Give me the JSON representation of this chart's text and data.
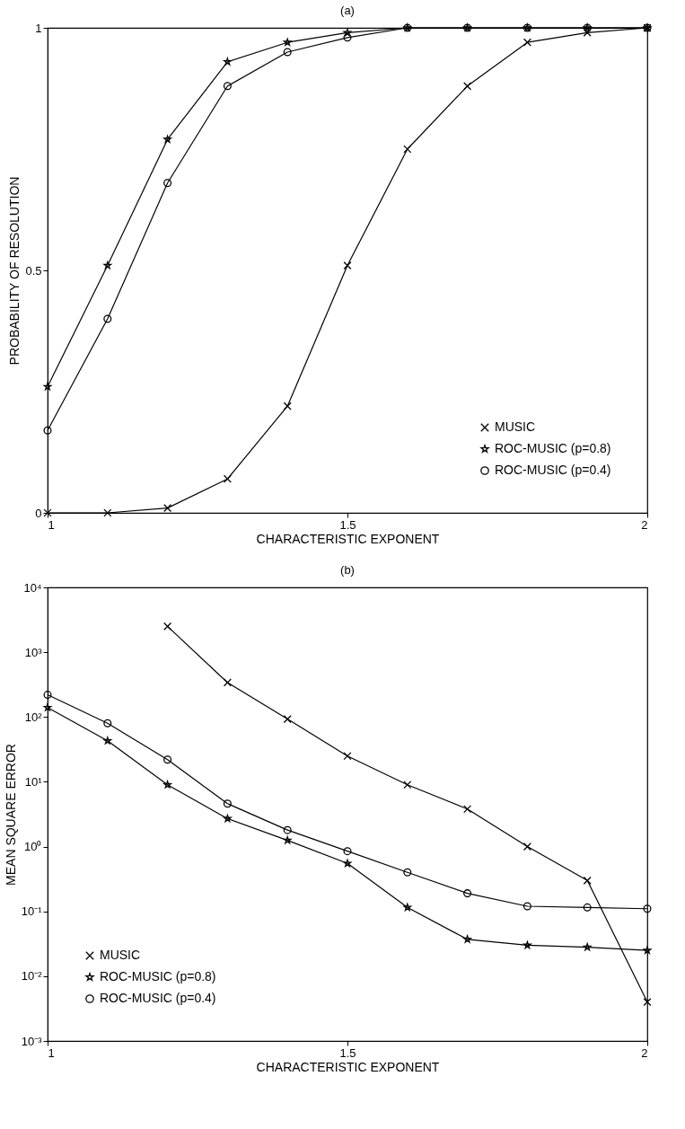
{
  "chart_data": [
    {
      "type": "line",
      "title": "(a)",
      "xlabel": "CHARACTERISTIC EXPONENT",
      "ylabel": "PROBABILITY OF RESOLUTION",
      "x": [
        1,
        1.1,
        1.2,
        1.3,
        1.4,
        1.5,
        1.6,
        1.7,
        1.8,
        1.9,
        2
      ],
      "series": [
        {
          "name": "MUSIC",
          "color": "#000000",
          "marker": "cross",
          "values": [
            0,
            0,
            0.01,
            0.07,
            0.22,
            0.51,
            0.75,
            0.88,
            0.97,
            0.99,
            1
          ]
        },
        {
          "name": "ROC-MUSIC (p=0.8)",
          "color": "#000000",
          "marker": "star",
          "values": [
            0.26,
            0.51,
            0.77,
            0.93,
            0.97,
            0.99,
            1,
            1,
            1,
            1,
            1
          ]
        },
        {
          "name": "ROC-MUSIC (p=0.4)",
          "color": "#000000",
          "marker": "circle",
          "values": [
            0.17,
            0.4,
            0.68,
            0.88,
            0.95,
            0.98,
            1,
            1,
            1,
            1,
            1
          ]
        }
      ],
      "xlim": [
        1,
        2
      ],
      "xticks": [
        1,
        1.5,
        2
      ],
      "ylim": [
        0,
        1
      ],
      "yticks": [
        0,
        0.5,
        1
      ],
      "legend": "bottom right"
    },
    {
      "type": "line",
      "title": "(b)",
      "xlabel": "CHARACTERISTIC EXPONENT",
      "ylabel": "MEAN SQUARE ERROR",
      "x": [
        1,
        1.1,
        1.2,
        1.3,
        1.4,
        1.5,
        1.6,
        1.7,
        1.8,
        1.9,
        2
      ],
      "series": [
        {
          "name": "MUSIC",
          "color": "#000000",
          "marker": "cross",
          "values": [
            null,
            null,
            2500,
            340,
            93,
            25,
            9,
            3.8,
            1,
            0.3,
            0.004
          ]
        },
        {
          "name": "ROC-MUSIC (p=0.8)",
          "color": "#000000",
          "marker": "star",
          "values": [
            140,
            43,
            9,
            2.7,
            1.25,
            0.55,
            0.115,
            0.037,
            0.03,
            0.028,
            0.025
          ]
        },
        {
          "name": "ROC-MUSIC (p=0.4)",
          "color": "#000000",
          "marker": "circle",
          "values": [
            220,
            80,
            22,
            4.6,
            1.8,
            0.85,
            0.4,
            0.19,
            0.12,
            0.115,
            0.11
          ]
        }
      ],
      "log": true,
      "xlim": [
        1,
        2
      ],
      "xticks": [
        1,
        1.5,
        2
      ],
      "ylim": [
        0.001,
        10000
      ],
      "yticks": [
        {
          "value": 0.001,
          "label": "10⁻³"
        },
        {
          "value": 0.01,
          "label": "10⁻²"
        },
        {
          "value": 0.1,
          "label": "10⁻¹"
        },
        {
          "value": 1,
          "label": "10⁰"
        },
        {
          "value": 10,
          "label": "10¹"
        },
        {
          "value": 100,
          "label": "10²"
        },
        {
          "value": 1000,
          "label": "10³"
        },
        {
          "value": 10000,
          "label": "10⁴"
        }
      ],
      "legend": "bottom left"
    }
  ]
}
